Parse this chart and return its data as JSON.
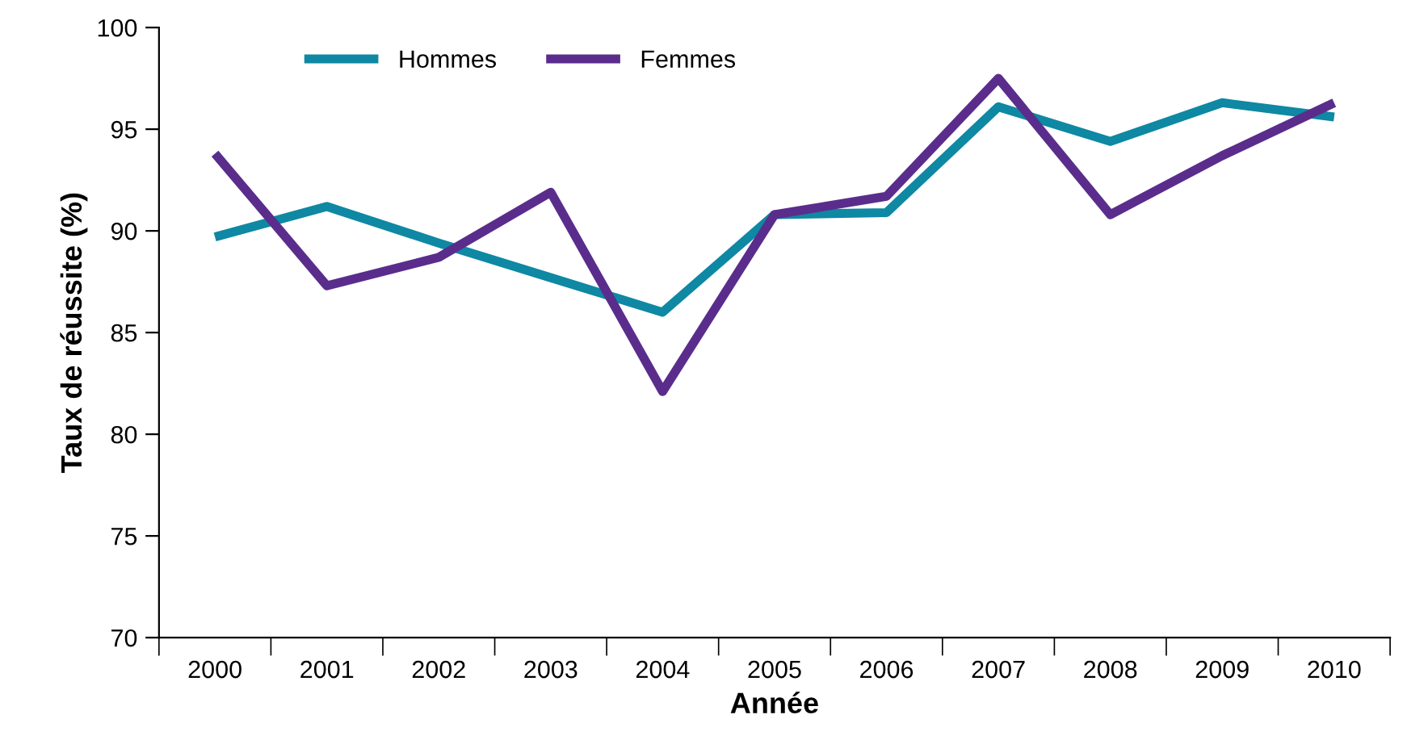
{
  "chart_data": {
    "type": "line",
    "xlabel": "Année",
    "ylabel": "Taux de réussite (%)",
    "categories": [
      "2000",
      "2001",
      "2002",
      "2003",
      "2004",
      "2005",
      "2006",
      "2007",
      "2008",
      "2009",
      "2010"
    ],
    "series": [
      {
        "name": "Hommes",
        "color": "#0e88a3",
        "values": [
          89.7,
          91.2,
          89.4,
          87.7,
          86.0,
          90.8,
          90.9,
          96.1,
          94.4,
          96.3,
          95.6
        ]
      },
      {
        "name": "Femmes",
        "color": "#5a2d8c",
        "values": [
          93.8,
          87.3,
          88.7,
          91.9,
          82.1,
          90.8,
          91.7,
          97.5,
          90.8,
          93.7,
          96.3
        ]
      }
    ],
    "ylim": [
      70,
      100
    ],
    "yticks": [
      70,
      75,
      80,
      85,
      90,
      95,
      100
    ],
    "grid": false,
    "legend": "top left",
    "marker": "none",
    "line_style": "solid"
  }
}
